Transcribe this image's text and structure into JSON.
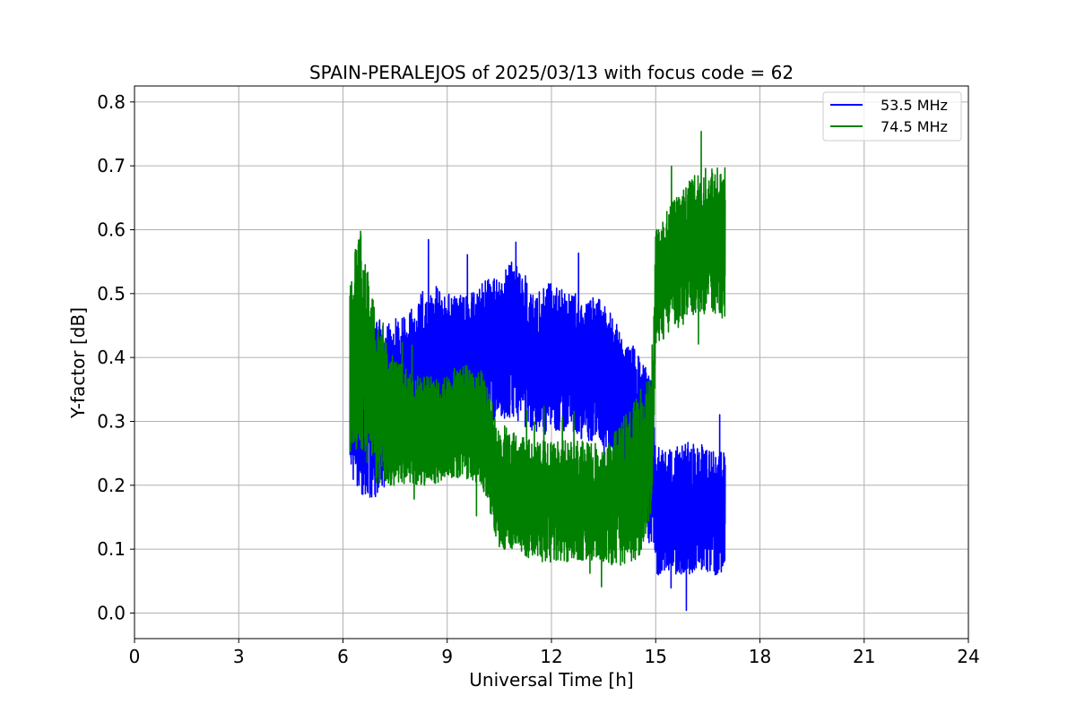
{
  "chart_data": {
    "type": "line",
    "title": "SPAIN-PERALEJOS of 2025/03/13 with focus code = 62",
    "xlabel": "Universal Time [h]",
    "ylabel": "Y-factor [dB]",
    "xlim": [
      0,
      24
    ],
    "ylim": [
      -0.04,
      0.825
    ],
    "xticks": [
      0,
      3,
      6,
      9,
      12,
      15,
      18,
      21,
      24
    ],
    "yticks": [
      0.0,
      0.1,
      0.2,
      0.3,
      0.4,
      0.5,
      0.6,
      0.7,
      0.8
    ],
    "grid": true,
    "legend_position": "top-right",
    "series": [
      {
        "name": "53.5 MHz",
        "color": "#0000ff",
        "envelope": [
          {
            "x": 6.2,
            "low": 0.22,
            "high": 0.5
          },
          {
            "x": 6.5,
            "low": 0.18,
            "high": 0.44
          },
          {
            "x": 7.0,
            "low": 0.18,
            "high": 0.46
          },
          {
            "x": 7.5,
            "low": 0.22,
            "high": 0.45
          },
          {
            "x": 8.0,
            "low": 0.25,
            "high": 0.48
          },
          {
            "x": 8.5,
            "low": 0.26,
            "high": 0.52
          },
          {
            "x": 9.0,
            "low": 0.3,
            "high": 0.5
          },
          {
            "x": 9.5,
            "low": 0.3,
            "high": 0.5
          },
          {
            "x": 10.0,
            "low": 0.3,
            "high": 0.52
          },
          {
            "x": 10.5,
            "low": 0.3,
            "high": 0.53
          },
          {
            "x": 11.0,
            "low": 0.3,
            "high": 0.56
          },
          {
            "x": 11.5,
            "low": 0.28,
            "high": 0.5
          },
          {
            "x": 12.0,
            "low": 0.28,
            "high": 0.52
          },
          {
            "x": 12.5,
            "low": 0.28,
            "high": 0.5
          },
          {
            "x": 13.0,
            "low": 0.27,
            "high": 0.5
          },
          {
            "x": 13.5,
            "low": 0.26,
            "high": 0.49
          },
          {
            "x": 14.0,
            "low": 0.22,
            "high": 0.44
          },
          {
            "x": 14.5,
            "low": 0.15,
            "high": 0.41
          },
          {
            "x": 14.9,
            "low": 0.1,
            "high": 0.38
          },
          {
            "x": 15.0,
            "low": 0.06,
            "high": 0.26
          },
          {
            "x": 15.5,
            "low": 0.06,
            "high": 0.26
          },
          {
            "x": 16.0,
            "low": 0.06,
            "high": 0.27
          },
          {
            "x": 16.5,
            "low": 0.06,
            "high": 0.26
          },
          {
            "x": 17.0,
            "low": 0.06,
            "high": 0.25
          }
        ]
      },
      {
        "name": "74.5 MHz",
        "color": "#008000",
        "envelope": [
          {
            "x": 6.2,
            "low": 0.25,
            "high": 0.55
          },
          {
            "x": 6.5,
            "low": 0.25,
            "high": 0.6
          },
          {
            "x": 7.0,
            "low": 0.2,
            "high": 0.45
          },
          {
            "x": 7.5,
            "low": 0.2,
            "high": 0.4
          },
          {
            "x": 8.0,
            "low": 0.2,
            "high": 0.38
          },
          {
            "x": 8.5,
            "low": 0.2,
            "high": 0.37
          },
          {
            "x": 9.0,
            "low": 0.21,
            "high": 0.37
          },
          {
            "x": 9.5,
            "low": 0.21,
            "high": 0.39
          },
          {
            "x": 10.0,
            "low": 0.2,
            "high": 0.38
          },
          {
            "x": 10.5,
            "low": 0.1,
            "high": 0.3
          },
          {
            "x": 11.0,
            "low": 0.1,
            "high": 0.28
          },
          {
            "x": 11.5,
            "low": 0.08,
            "high": 0.27
          },
          {
            "x": 12.0,
            "low": 0.08,
            "high": 0.27
          },
          {
            "x": 12.5,
            "low": 0.08,
            "high": 0.27
          },
          {
            "x": 13.0,
            "low": 0.08,
            "high": 0.27
          },
          {
            "x": 13.5,
            "low": 0.08,
            "high": 0.26
          },
          {
            "x": 14.0,
            "low": 0.07,
            "high": 0.3
          },
          {
            "x": 14.5,
            "low": 0.08,
            "high": 0.35
          },
          {
            "x": 14.9,
            "low": 0.16,
            "high": 0.37
          },
          {
            "x": 15.0,
            "low": 0.42,
            "high": 0.6
          },
          {
            "x": 15.5,
            "low": 0.44,
            "high": 0.65
          },
          {
            "x": 16.0,
            "low": 0.46,
            "high": 0.68
          },
          {
            "x": 16.5,
            "low": 0.47,
            "high": 0.7
          },
          {
            "x": 17.0,
            "low": 0.46,
            "high": 0.7
          }
        ]
      }
    ]
  }
}
